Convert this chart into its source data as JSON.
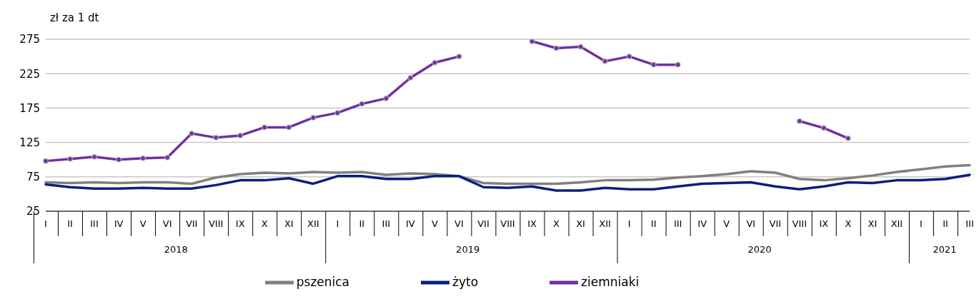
{
  "chart_data": {
    "type": "line",
    "ylabel": "zł za 1 dt",
    "categories": [
      "I",
      "II",
      "III",
      "IV",
      "V",
      "VI",
      "VII",
      "VIII",
      "IX",
      "X",
      "XI",
      "XII",
      "I",
      "II",
      "III",
      "IV",
      "V",
      "VI",
      "VII",
      "VIII",
      "IX",
      "X",
      "XI",
      "XII",
      "I",
      "II",
      "III",
      "IV",
      "V",
      "VI",
      "VII",
      "VIII",
      "IX",
      "X",
      "XI",
      "XII",
      "I",
      "II",
      "III"
    ],
    "annotations": [
      "2018",
      "2019",
      "2020",
      "2021"
    ],
    "series": [
      {
        "name": "pszenica",
        "color": "#808080",
        "marker": "none",
        "values": [
          67,
          66,
          67,
          66,
          67,
          67,
          65,
          74,
          79,
          81,
          80,
          82,
          81,
          82,
          78,
          80,
          79,
          76,
          66,
          65,
          65,
          65,
          67,
          70,
          70,
          71,
          74,
          76,
          79,
          83,
          81,
          72,
          70,
          73,
          77,
          82,
          86,
          90,
          92
        ]
      },
      {
        "name": "żyto",
        "color": "#0a1f7f",
        "marker": "none",
        "values": [
          64,
          60,
          58,
          58,
          59,
          58,
          58,
          63,
          70,
          70,
          73,
          65,
          76,
          76,
          72,
          72,
          76,
          76,
          60,
          59,
          61,
          55,
          55,
          59,
          57,
          57,
          61,
          65,
          66,
          67,
          61,
          57,
          61,
          67,
          66,
          70,
          70,
          72,
          78
        ]
      },
      {
        "name": "ziemniaki",
        "color": "#7030a0",
        "marker": "circle",
        "values": [
          98,
          101,
          104,
          100,
          102,
          103,
          138,
          132,
          135,
          147,
          147,
          161,
          168,
          181,
          189,
          219,
          241,
          250,
          null,
          null,
          272,
          262,
          264,
          243,
          250,
          238,
          238,
          null,
          null,
          null,
          null,
          156,
          146,
          131,
          null,
          null,
          null,
          null,
          null
        ]
      }
    ],
    "ylim": [
      25,
      275
    ],
    "yticks": [
      25,
      75,
      125,
      175,
      225,
      275
    ],
    "grid": "y",
    "legend": "bottom"
  }
}
